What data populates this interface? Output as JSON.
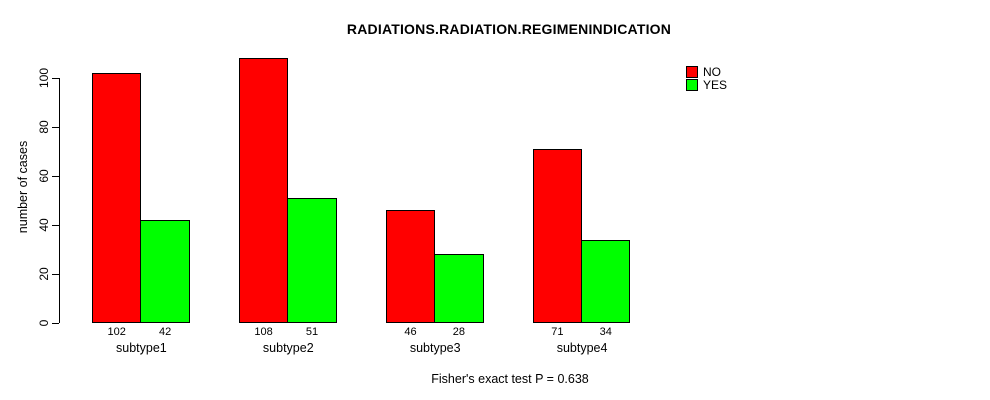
{
  "chart_data": {
    "type": "bar",
    "title": "RADIATIONS.RADIATION.REGIMENINDICATION",
    "xlabel": "",
    "ylabel": "number of cases",
    "categories": [
      "subtype1",
      "subtype2",
      "subtype3",
      "subtype4"
    ],
    "series": [
      {
        "name": "NO",
        "color": "#FF0000",
        "values": [
          102,
          108,
          46,
          71
        ]
      },
      {
        "name": "YES",
        "color": "#00FF00",
        "values": [
          42,
          51,
          28,
          34
        ]
      }
    ],
    "yticks": [
      0,
      20,
      40,
      60,
      80,
      100
    ],
    "ylim": [
      0,
      110
    ],
    "grid": false,
    "bar_value_labels": true,
    "legend_position": "top-right",
    "annotation": "Fisher's exact test P = 0.638"
  }
}
